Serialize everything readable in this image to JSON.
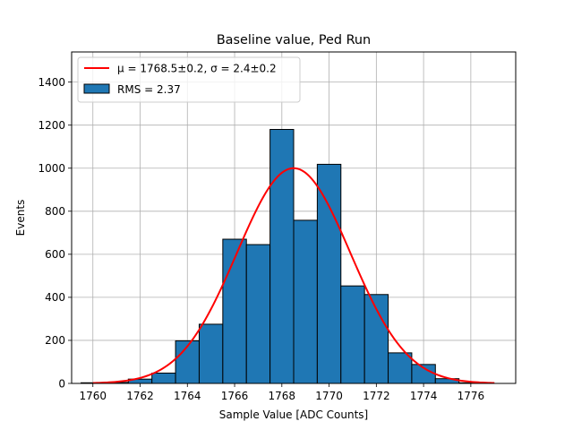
{
  "chart_data": {
    "type": "bar",
    "title": "Baseline value, Ped Run",
    "xlabel": "Sample Value [ADC Counts]",
    "ylabel": "Events",
    "xlim": [
      1759.1,
      1777.9
    ],
    "ylim": [
      0,
      1540
    ],
    "grid": true,
    "legend_placement": "top-left",
    "x_ticks": [
      1760,
      1762,
      1764,
      1766,
      1768,
      1770,
      1772,
      1774,
      1776
    ],
    "y_ticks": [
      0,
      200,
      400,
      600,
      800,
      1000,
      1200,
      1400
    ],
    "histogram": {
      "label": "RMS = 2.37",
      "color": "#1f77b4",
      "edge_color": "#000000",
      "bins": [
        {
          "x0": 1759.5,
          "x1": 1760.5,
          "value": 3
        },
        {
          "x0": 1760.5,
          "x1": 1761.5,
          "value": 5
        },
        {
          "x0": 1761.5,
          "x1": 1762.5,
          "value": 20
        },
        {
          "x0": 1762.5,
          "x1": 1763.5,
          "value": 48
        },
        {
          "x0": 1763.5,
          "x1": 1764.5,
          "value": 198
        },
        {
          "x0": 1764.5,
          "x1": 1765.5,
          "value": 275
        },
        {
          "x0": 1765.5,
          "x1": 1766.5,
          "value": 670
        },
        {
          "x0": 1766.5,
          "x1": 1767.5,
          "value": 645
        },
        {
          "x0": 1767.5,
          "x1": 1768.5,
          "value": 1180
        },
        {
          "x0": 1768.5,
          "x1": 1769.5,
          "value": 758
        },
        {
          "x0": 1769.5,
          "x1": 1770.5,
          "value": 1018
        },
        {
          "x0": 1770.5,
          "x1": 1771.5,
          "value": 453
        },
        {
          "x0": 1771.5,
          "x1": 1772.5,
          "value": 413
        },
        {
          "x0": 1772.5,
          "x1": 1773.5,
          "value": 142
        },
        {
          "x0": 1773.5,
          "x1": 1774.5,
          "value": 88
        },
        {
          "x0": 1774.5,
          "x1": 1775.5,
          "value": 22
        },
        {
          "x0": 1775.5,
          "x1": 1776.5,
          "value": 3
        }
      ]
    },
    "fit": {
      "label": "μ = 1768.5±0.2, σ = 2.4±0.2",
      "color": "#ff0000",
      "mu": 1768.5,
      "sigma": 2.4,
      "amplitude": 1000,
      "x_range": [
        1760,
        1777
      ]
    }
  }
}
